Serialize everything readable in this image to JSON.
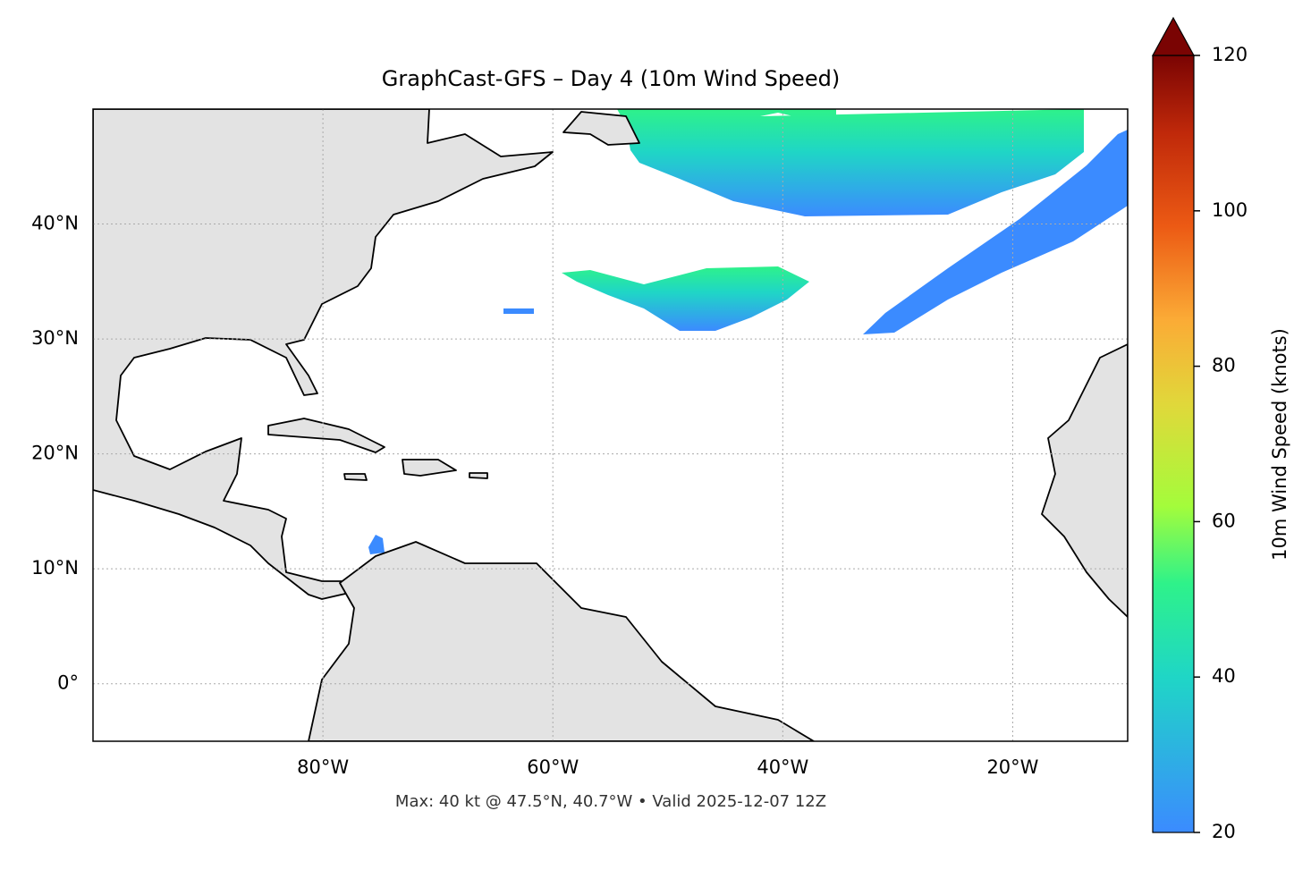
{
  "chart_data": {
    "type": "map",
    "title": "GraphCast-GFS – Day 4 (10m Wind Speed)",
    "xlim": [
      -100,
      -10
    ],
    "ylim": [
      -5,
      50
    ],
    "xticks": [
      {
        "value": -80,
        "label": "80°W"
      },
      {
        "value": -60,
        "label": "60°W"
      },
      {
        "value": -40,
        "label": "40°W"
      },
      {
        "value": -20,
        "label": "20°W"
      }
    ],
    "yticks": [
      {
        "value": 0,
        "label": "0°"
      },
      {
        "value": 10,
        "label": "10°N"
      },
      {
        "value": 20,
        "label": "20°N"
      },
      {
        "value": 30,
        "label": "30°N"
      },
      {
        "value": 40,
        "label": "40°N"
      }
    ],
    "grid": true,
    "colorbar": {
      "label": "10m Wind Speed (knots)",
      "lim": [
        20,
        120
      ],
      "ticks": [
        20,
        40,
        60,
        80,
        100,
        120
      ]
    },
    "annotation": "Max: 40 kt @ 47.5°N, 40.7°W • Valid 2025-12-07 12Z"
  }
}
